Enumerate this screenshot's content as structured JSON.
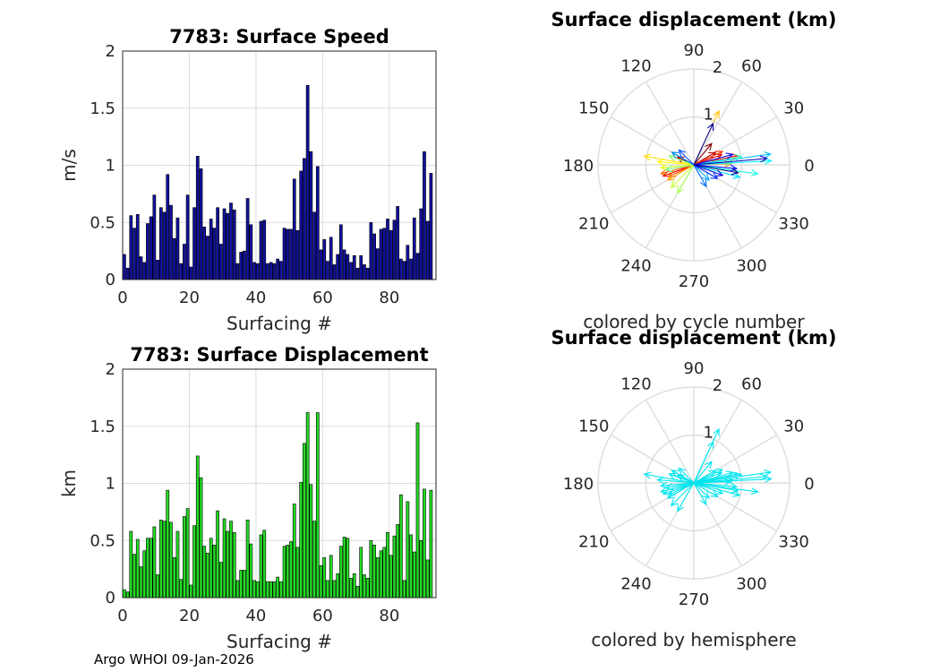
{
  "footer": "Argo WHOI 09-Jan-2026",
  "colors": {
    "speed_bar": "#1010a0",
    "disp_bar": "#22dd22",
    "grid": "#dddddd",
    "hemisphere": "#00e5ee"
  },
  "chart_data": [
    {
      "type": "bar",
      "title": "7783: Surface Speed",
      "xlabel": "Surfacing #",
      "ylabel": "m/s",
      "xlim": [
        0,
        94
      ],
      "ylim": [
        0,
        2
      ],
      "xticks": [
        "0",
        "20",
        "40",
        "60",
        "80"
      ],
      "yticks": [
        "0",
        "0.5",
        "1",
        "1.5",
        "2"
      ],
      "values": [
        0.22,
        0.1,
        0.56,
        0.45,
        0.57,
        0.2,
        0.15,
        0.49,
        0.55,
        0.74,
        0.17,
        0.63,
        0.59,
        0.92,
        0.65,
        0.36,
        0.54,
        0.14,
        0.31,
        0.74,
        0.11,
        0.63,
        1.08,
        0.97,
        0.46,
        0.38,
        0.53,
        0.45,
        0.63,
        0.31,
        0.62,
        0.58,
        0.67,
        0.61,
        0.14,
        0.24,
        0.25,
        0.71,
        0.48,
        0.15,
        0.14,
        0.51,
        0.52,
        0.14,
        0.15,
        0.14,
        0.18,
        0.16,
        0.45,
        0.44,
        0.44,
        0.88,
        0.43,
        0.95,
        1.06,
        1.7,
        1.12,
        0.59,
        0.99,
        0.26,
        0.35,
        0.16,
        0.37,
        0.13,
        0.22,
        0.48,
        0.26,
        0.22,
        0.15,
        0.21,
        0.1,
        0.21,
        0.13,
        0.1,
        0.5,
        0.4,
        0.27,
        0.44,
        0.45,
        0.53,
        0.43,
        0.52,
        0.64,
        0.18,
        0.16,
        0.3,
        0.18,
        0.54,
        0.23,
        0.62,
        1.12,
        0.51,
        0.93
      ]
    },
    {
      "type": "bar",
      "title": "7783: Surface Displacement",
      "xlabel": "Surfacing #",
      "ylabel": "km",
      "xlim": [
        0,
        94
      ],
      "ylim": [
        0,
        2
      ],
      "xticks": [
        "0",
        "20",
        "40",
        "60",
        "80"
      ],
      "yticks": [
        "0",
        "0.5",
        "1",
        "1.5",
        "2"
      ],
      "values": [
        0.07,
        0.05,
        0.58,
        0.38,
        0.51,
        0.27,
        0.41,
        0.52,
        0.52,
        0.62,
        0.2,
        0.68,
        0.67,
        0.94,
        0.66,
        0.35,
        0.58,
        0.16,
        0.71,
        0.78,
        0.11,
        0.63,
        1.24,
        1.05,
        0.45,
        0.39,
        0.52,
        0.46,
        0.76,
        0.31,
        0.69,
        0.58,
        0.67,
        0.57,
        0.15,
        0.24,
        0.24,
        0.68,
        0.47,
        0.15,
        0.14,
        0.55,
        0.59,
        0.14,
        0.14,
        0.14,
        0.18,
        0.14,
        0.45,
        0.46,
        0.49,
        0.82,
        0.44,
        1.01,
        1.35,
        1.62,
        0.99,
        0.67,
        1.62,
        0.28,
        0.35,
        0.15,
        0.37,
        0.15,
        0.21,
        0.45,
        0.53,
        0.52,
        0.17,
        0.21,
        0.1,
        0.44,
        0.2,
        0.17,
        0.5,
        0.46,
        0.35,
        0.41,
        0.44,
        0.57,
        0.37,
        0.54,
        0.64,
        0.9,
        0.15,
        0.84,
        0.55,
        0.4,
        1.53,
        0.5,
        0.95,
        0.33,
        0.94
      ]
    },
    {
      "type": "polar",
      "title": "Surface displacement (km)",
      "subtitle": "colored by cycle number",
      "rlim": [
        0,
        2
      ],
      "rticks": [
        "1",
        "2"
      ],
      "angle_labels": [
        "0",
        "30",
        "60",
        "90",
        "120",
        "150",
        "180",
        "210",
        "240",
        "270",
        "300",
        "330"
      ],
      "vectors": [
        [
          0.58,
          50
        ],
        [
          0.38,
          155
        ],
        [
          0.52,
          30
        ],
        [
          0.62,
          20
        ],
        [
          0.68,
          200
        ],
        [
          0.94,
          12
        ],
        [
          0.66,
          25
        ],
        [
          0.58,
          205
        ],
        [
          0.71,
          195
        ],
        [
          0.78,
          2
        ],
        [
          0.63,
          210
        ],
        [
          1.24,
          65
        ],
        [
          1.05,
          170
        ],
        [
          0.76,
          175
        ],
        [
          0.69,
          185
        ],
        [
          0.67,
          225
        ],
        [
          0.68,
          240
        ],
        [
          0.55,
          160
        ],
        [
          0.59,
          190
        ],
        [
          0.82,
          5
        ],
        [
          1.01,
          10
        ],
        [
          1.35,
          -8
        ],
        [
          1.62,
          3
        ],
        [
          0.99,
          -15
        ],
        [
          1.62,
          8
        ],
        [
          0.45,
          -45
        ],
        [
          0.53,
          150
        ],
        [
          0.52,
          -60
        ],
        [
          0.44,
          135
        ],
        [
          0.57,
          -30
        ],
        [
          0.9,
          -5
        ],
        [
          0.84,
          15
        ],
        [
          0.64,
          -20
        ],
        [
          1.53,
          5
        ],
        [
          0.95,
          65
        ],
        [
          0.94,
          -10
        ]
      ]
    },
    {
      "type": "polar",
      "title": "Surface displacement (km)",
      "subtitle": "colored by hemisphere",
      "rlim": [
        0,
        2
      ],
      "rticks": [
        "1",
        "2"
      ],
      "angle_labels": [
        "0",
        "30",
        "60",
        "90",
        "120",
        "150",
        "180",
        "210",
        "240",
        "270",
        "300",
        "330"
      ],
      "vectors": [
        [
          0.58,
          50
        ],
        [
          0.38,
          155
        ],
        [
          0.52,
          30
        ],
        [
          0.62,
          20
        ],
        [
          0.68,
          200
        ],
        [
          0.94,
          12
        ],
        [
          0.66,
          25
        ],
        [
          0.58,
          205
        ],
        [
          0.71,
          195
        ],
        [
          0.78,
          2
        ],
        [
          0.63,
          210
        ],
        [
          1.24,
          65
        ],
        [
          1.05,
          170
        ],
        [
          0.76,
          175
        ],
        [
          0.69,
          185
        ],
        [
          0.67,
          225
        ],
        [
          0.68,
          240
        ],
        [
          0.55,
          160
        ],
        [
          0.59,
          190
        ],
        [
          0.82,
          5
        ],
        [
          1.01,
          10
        ],
        [
          1.35,
          -8
        ],
        [
          1.62,
          3
        ],
        [
          0.99,
          -15
        ],
        [
          1.62,
          8
        ],
        [
          0.45,
          -45
        ],
        [
          0.53,
          150
        ],
        [
          0.52,
          -60
        ],
        [
          0.44,
          135
        ],
        [
          0.57,
          -30
        ],
        [
          0.9,
          -5
        ],
        [
          0.84,
          15
        ],
        [
          0.64,
          -20
        ],
        [
          1.53,
          5
        ],
        [
          0.95,
          65
        ],
        [
          0.94,
          -10
        ]
      ]
    }
  ]
}
